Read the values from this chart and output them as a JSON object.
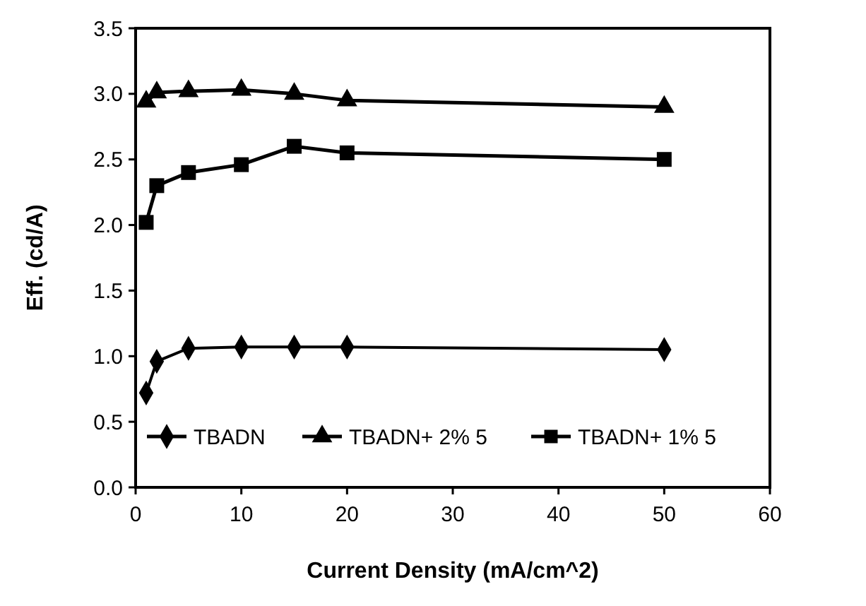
{
  "chart_data": {
    "type": "line",
    "xlabel": "Current Density (mA/cm^2)",
    "ylabel": "Eff. (cd/A)",
    "x": [
      1,
      2,
      5,
      10,
      15,
      20,
      50
    ],
    "series": [
      {
        "name": "TBADN",
        "color": "#000000",
        "marker": "diamond",
        "values": [
          0.72,
          0.96,
          1.06,
          1.07,
          1.07,
          1.07,
          1.05
        ]
      },
      {
        "name": "TBADN+ 2% 5",
        "color": "#000000",
        "marker": "triangle",
        "values": [
          2.94,
          3.01,
          3.02,
          3.03,
          3.0,
          2.95,
          2.9
        ]
      },
      {
        "name": "TBADN+ 1% 5",
        "color": "#000000",
        "marker": "square",
        "values": [
          2.02,
          2.3,
          2.4,
          2.46,
          2.6,
          2.55,
          2.5
        ]
      }
    ],
    "xlim": [
      0,
      60
    ],
    "xticks": [
      0,
      10,
      20,
      30,
      40,
      50,
      60
    ],
    "ylim": [
      0,
      3.5
    ],
    "yticks": [
      {
        "value": 0,
        "label": "0.0"
      },
      {
        "value": 0.5,
        "label": "0.5"
      },
      {
        "value": 1,
        "label": "1.0"
      },
      {
        "value": 1.5,
        "label": "1.5"
      },
      {
        "value": 2,
        "label": "2.0"
      },
      {
        "value": 2.5,
        "label": "2.5"
      },
      {
        "value": 3,
        "label": "3.0"
      },
      {
        "value": 3.5,
        "label": "3.5"
      }
    ],
    "grid": false,
    "legend": "bottom",
    "line_style": "solid"
  }
}
